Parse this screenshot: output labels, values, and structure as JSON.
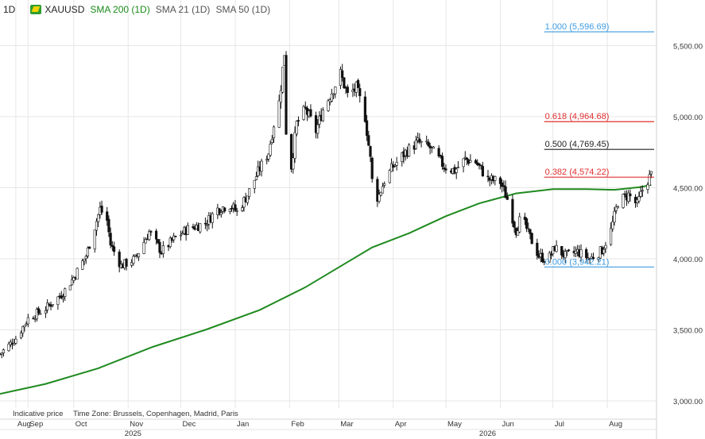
{
  "header": {
    "interval": "1D",
    "symbol": "XAUUSD",
    "indicators": [
      "SMA 200 (1D)",
      "SMA 21 (1D)",
      "SMA 50 (1D)"
    ]
  },
  "footer": {
    "price_note": "Indicative price",
    "timezone": "Time Zone: Brussels, Copenhagen, Madrid, Paris"
  },
  "colors": {
    "up": "#ffffff",
    "down": "#111111",
    "wick": "#111111",
    "sma200": "#1f8a1f",
    "fib_blue": "#3d9be0",
    "fib_red": "#e03030",
    "fib_black": "#222222",
    "grid": "#e6e6e6"
  },
  "chart_data": {
    "type": "candlestick",
    "title": "XAUUSD",
    "interval": "1D",
    "ylim": [
      2950,
      5720
    ],
    "y_ticks": [
      "3,000.00",
      "3,500.00",
      "4,000.00",
      "4,500.00",
      "5,000.00",
      "5,500.00"
    ],
    "y_tick_values": [
      3000,
      3500,
      4000,
      4500,
      5000,
      5500
    ],
    "x_start": "2025-08-20",
    "x_end": "2026-08-29",
    "month_ticks": [
      {
        "date": "2025-08-29",
        "label": "Aug"
      },
      {
        "date": "2025-09-05",
        "label": "Sep"
      },
      {
        "date": "2025-10-01",
        "label": "Oct"
      },
      {
        "date": "2025-11-01",
        "label": "Nov"
      },
      {
        "date": "2025-12-01",
        "label": "Dec"
      },
      {
        "date": "2026-01-01",
        "label": "Jan"
      },
      {
        "date": "2026-02-01",
        "label": "Feb"
      },
      {
        "date": "2026-03-01",
        "label": "Mar"
      },
      {
        "date": "2026-04-01",
        "label": "Apr"
      },
      {
        "date": "2026-05-01",
        "label": "May"
      },
      {
        "date": "2026-06-01",
        "label": "Jun"
      },
      {
        "date": "2026-07-01",
        "label": "Jul"
      },
      {
        "date": "2026-08-01",
        "label": "Aug"
      }
    ],
    "year_ticks": [
      {
        "date": "2025-10-30",
        "label": "2025"
      },
      {
        "date": "2026-05-20",
        "label": "2026"
      }
    ],
    "price_path": [
      {
        "date": "2025-08-20",
        "close": 3330
      },
      {
        "date": "2025-08-29",
        "close": 3440
      },
      {
        "date": "2025-09-05",
        "close": 3580
      },
      {
        "date": "2025-09-15",
        "close": 3650
      },
      {
        "date": "2025-09-25",
        "close": 3760
      },
      {
        "date": "2025-10-01",
        "close": 3870
      },
      {
        "date": "2025-10-08",
        "close": 4020
      },
      {
        "date": "2025-10-16",
        "close": 4350
      },
      {
        "date": "2025-10-20",
        "close": 4270
      },
      {
        "date": "2025-10-22",
        "close": 4100
      },
      {
        "date": "2025-10-28",
        "close": 3950
      },
      {
        "date": "2025-11-05",
        "close": 4000
      },
      {
        "date": "2025-11-13",
        "close": 4190
      },
      {
        "date": "2025-11-20",
        "close": 4050
      },
      {
        "date": "2025-11-28",
        "close": 4150
      },
      {
        "date": "2025-12-05",
        "close": 4210
      },
      {
        "date": "2025-12-15",
        "close": 4250
      },
      {
        "date": "2025-12-22",
        "close": 4350
      },
      {
        "date": "2025-12-29",
        "close": 4380
      },
      {
        "date": "2026-01-02",
        "close": 4330
      },
      {
        "date": "2026-01-08",
        "close": 4450
      },
      {
        "date": "2026-01-14",
        "close": 4610
      },
      {
        "date": "2026-01-20",
        "close": 4750
      },
      {
        "date": "2026-01-23",
        "close": 4950
      },
      {
        "date": "2026-01-26",
        "close": 5100
      },
      {
        "date": "2026-01-29",
        "close": 5450
      },
      {
        "date": "2026-01-30",
        "close": 4900
      },
      {
        "date": "2026-02-02",
        "close": 4650
      },
      {
        "date": "2026-02-05",
        "close": 4950
      },
      {
        "date": "2026-02-10",
        "close": 5050
      },
      {
        "date": "2026-02-16",
        "close": 4900
      },
      {
        "date": "2026-02-20",
        "close": 5050
      },
      {
        "date": "2026-02-26",
        "close": 5200
      },
      {
        "date": "2026-03-02",
        "close": 5300
      },
      {
        "date": "2026-03-06",
        "close": 5150
      },
      {
        "date": "2026-03-11",
        "close": 5200
      },
      {
        "date": "2026-03-16",
        "close": 5000
      },
      {
        "date": "2026-03-19",
        "close": 4700
      },
      {
        "date": "2026-03-21",
        "close": 4400
      },
      {
        "date": "2026-03-24",
        "close": 4450
      },
      {
        "date": "2026-03-27",
        "close": 4550
      },
      {
        "date": "2026-04-01",
        "close": 4650
      },
      {
        "date": "2026-04-08",
        "close": 4750
      },
      {
        "date": "2026-04-15",
        "close": 4820
      },
      {
        "date": "2026-04-22",
        "close": 4780
      },
      {
        "date": "2026-04-30",
        "close": 4650
      },
      {
        "date": "2026-05-06",
        "close": 4620
      },
      {
        "date": "2026-05-12",
        "close": 4700
      },
      {
        "date": "2026-05-18",
        "close": 4680
      },
      {
        "date": "2026-05-25",
        "close": 4560
      },
      {
        "date": "2026-06-01",
        "close": 4540
      },
      {
        "date": "2026-06-05",
        "close": 4420
      },
      {
        "date": "2026-06-10",
        "close": 4200
      },
      {
        "date": "2026-06-13",
        "close": 4300
      },
      {
        "date": "2026-06-18",
        "close": 4150
      },
      {
        "date": "2026-06-23",
        "close": 4020
      },
      {
        "date": "2026-06-28",
        "close": 3990
      },
      {
        "date": "2026-07-02",
        "close": 4080
      },
      {
        "date": "2026-07-08",
        "close": 4020
      },
      {
        "date": "2026-07-15",
        "close": 4050
      },
      {
        "date": "2026-07-22",
        "close": 4000
      },
      {
        "date": "2026-07-29",
        "close": 4060
      },
      {
        "date": "2026-08-03",
        "close": 4200
      },
      {
        "date": "2026-08-07",
        "close": 4400
      },
      {
        "date": "2026-08-13",
        "close": 4450
      },
      {
        "date": "2026-08-18",
        "close": 4380
      },
      {
        "date": "2026-08-22",
        "close": 4520
      },
      {
        "date": "2026-08-26",
        "close": 4590
      }
    ],
    "series": [
      {
        "name": "SMA 200 (1D)",
        "points": [
          {
            "date": "2025-08-20",
            "value": 3050
          },
          {
            "date": "2025-09-15",
            "value": 3120
          },
          {
            "date": "2025-10-15",
            "value": 3230
          },
          {
            "date": "2025-11-15",
            "value": 3380
          },
          {
            "date": "2025-12-15",
            "value": 3500
          },
          {
            "date": "2026-01-15",
            "value": 3640
          },
          {
            "date": "2026-02-10",
            "value": 3800
          },
          {
            "date": "2026-03-01",
            "value": 3940
          },
          {
            "date": "2026-03-20",
            "value": 4080
          },
          {
            "date": "2026-04-10",
            "value": 4180
          },
          {
            "date": "2026-05-01",
            "value": 4300
          },
          {
            "date": "2026-05-20",
            "value": 4390
          },
          {
            "date": "2026-06-10",
            "value": 4460
          },
          {
            "date": "2026-07-01",
            "value": 4490
          },
          {
            "date": "2026-07-20",
            "value": 4490
          },
          {
            "date": "2026-08-05",
            "value": 4485
          },
          {
            "date": "2026-08-20",
            "value": 4505
          },
          {
            "date": "2026-08-26",
            "value": 4520
          }
        ]
      }
    ],
    "fibonacci": {
      "start_date": "2026-06-26",
      "levels": [
        {
          "ratio": "1.000",
          "value": 5596.69,
          "label": "1.000 (5,596.69)",
          "color": "blue"
        },
        {
          "ratio": "0.618",
          "value": 4964.68,
          "label": "0.618 (4,964.68)",
          "color": "red"
        },
        {
          "ratio": "0.500",
          "value": 4769.45,
          "label": "0.500 (4,769.45)",
          "color": "black"
        },
        {
          "ratio": "0.382",
          "value": 4574.22,
          "label": "0.382 (4,574.22)",
          "color": "red"
        },
        {
          "ratio": "0.000",
          "value": 3942.21,
          "label": "0.000 (3,942.21)",
          "color": "blue"
        }
      ]
    },
    "grid": true,
    "legend": "top-left"
  }
}
